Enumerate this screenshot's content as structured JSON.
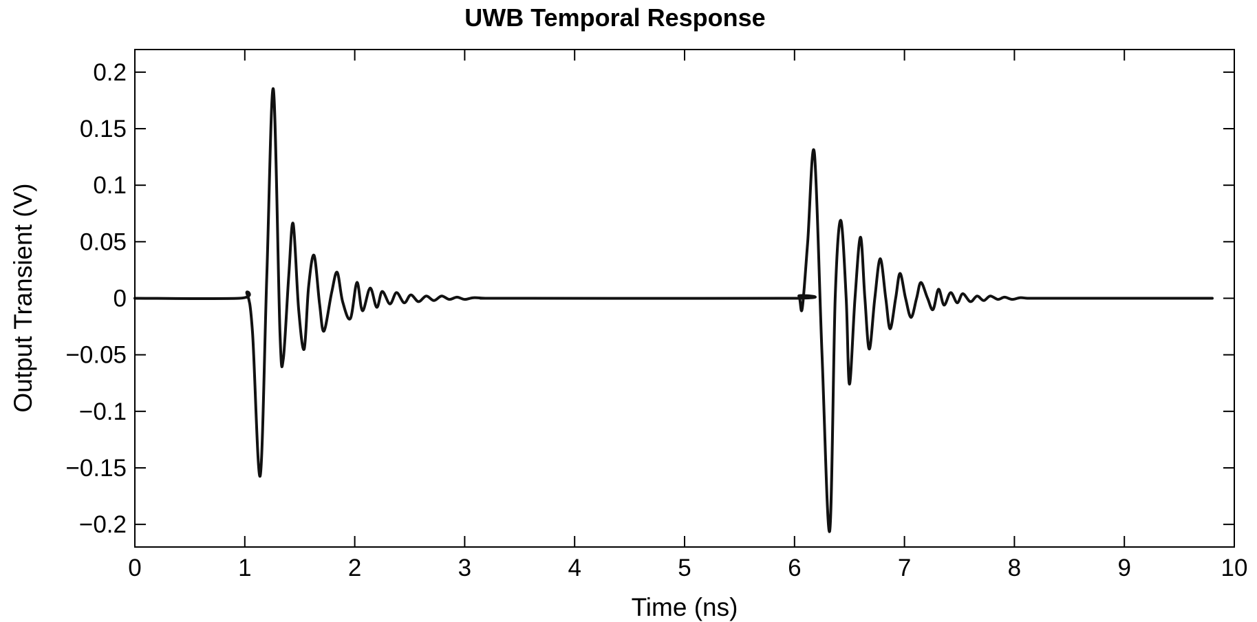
{
  "chart_data": {
    "type": "line",
    "title": "UWB Temporal Response",
    "xlabel": "Time (ns)",
    "ylabel": "Output Transient (V)",
    "xlim": [
      0,
      10
    ],
    "ylim": [
      -0.22,
      0.22
    ],
    "xticks": [
      0,
      1,
      2,
      3,
      4,
      5,
      6,
      7,
      8,
      9,
      10
    ],
    "xtick_labels": [
      "0",
      "1",
      "2",
      "3",
      "4",
      "5",
      "6",
      "7",
      "8",
      "9",
      "10"
    ],
    "yticks": [
      0.2,
      0.15,
      0.1,
      0.05,
      0,
      -0.05,
      -0.1,
      -0.15,
      -0.2
    ],
    "ytick_labels": [
      "0.2",
      "0.15",
      "0.1",
      "0.05",
      "0",
      "−0.05",
      "−0.1",
      "−0.15",
      "−0.2"
    ],
    "grid": false,
    "line_color": "#111111",
    "series": [
      {
        "x": [
          0,
          0.95,
          1.02,
          1.07,
          1.14,
          1.2,
          1.26,
          1.32,
          1.35,
          1.4,
          1.44,
          1.49,
          1.54,
          1.58,
          1.63,
          1.68,
          1.72,
          1.79,
          1.84,
          1.89,
          1.96,
          2.02,
          2.07,
          2.14,
          2.2,
          2.25,
          2.32,
          2.38,
          2.45,
          2.51,
          2.58,
          2.65,
          2.72,
          2.79,
          2.86,
          2.93,
          3.0,
          3.08,
          3.2,
          3.4,
          5.98,
          6.04,
          6.07,
          6.12,
          6.18,
          6.25,
          6.32,
          6.37,
          6.42,
          6.47,
          6.5,
          6.55,
          6.6,
          6.64,
          6.68,
          6.73,
          6.78,
          6.83,
          6.87,
          6.92,
          6.96,
          7.01,
          7.06,
          7.11,
          7.15,
          7.21,
          7.26,
          7.31,
          7.36,
          7.42,
          7.48,
          7.53,
          7.6,
          7.66,
          7.72,
          7.78,
          7.85,
          7.91,
          7.98,
          8.05,
          8.12,
          8.2,
          8.35,
          9.8
        ],
        "y": [
          0,
          0,
          0.004,
          -0.03,
          -0.157,
          0.02,
          0.185,
          -0.03,
          -0.054,
          0.02,
          0.066,
          -0.01,
          -0.045,
          0.01,
          0.038,
          -0.005,
          -0.029,
          0.005,
          0.023,
          -0.003,
          -0.018,
          0.014,
          -0.011,
          0.009,
          -0.008,
          0.006,
          -0.005,
          0.005,
          -0.004,
          0.003,
          -0.003,
          0.002,
          -0.002,
          0.002,
          -0.001,
          0.001,
          -0.001,
          0.0005,
          0,
          0,
          0,
          0.002,
          -0.009,
          0.05,
          0.129,
          -0.05,
          -0.206,
          0.0,
          0.069,
          0.0,
          -0.076,
          0.0,
          0.054,
          0.0,
          -0.045,
          0.0,
          0.035,
          0.0,
          -0.027,
          0.0,
          0.022,
          0.0,
          -0.017,
          0.0,
          0.014,
          0.0,
          -0.01,
          0.008,
          -0.006,
          0.005,
          -0.004,
          0.004,
          -0.003,
          0.002,
          -0.002,
          0.002,
          -0.001,
          0.001,
          -0.001,
          0.0005,
          0,
          0,
          0,
          0
        ]
      }
    ]
  }
}
